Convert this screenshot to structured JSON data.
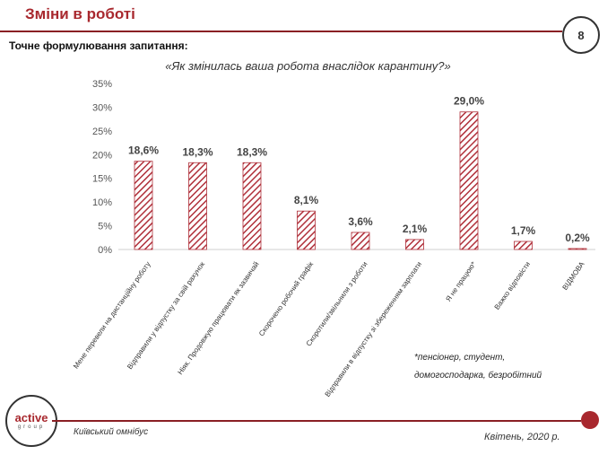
{
  "header": {
    "title": "Зміни в роботі",
    "page_number": "8"
  },
  "question_label": "Точне формулювання  запитання:",
  "question_text": "«Як змінилась ваша робота внаслідок карантину?»",
  "chart_data": {
    "type": "bar",
    "categories": [
      "Мене перевели на дистанційну роботу",
      "Відправили у відпустку за свій рахунок",
      "Ніяк. Продовжую працювати як зазвичай",
      "Скорочено робочий графік",
      "Скоротили/звільнили з роботи",
      "Відправили в відпустку зі збереженням зарплати",
      "Я не працюю*",
      "Важко відповісти",
      "ВІДМОВА"
    ],
    "values": [
      18.6,
      18.3,
      18.3,
      8.1,
      3.6,
      2.1,
      29.0,
      1.7,
      0.2
    ],
    "value_labels": [
      "18,6%",
      "18,3%",
      "18,3%",
      "8,1%",
      "3,6%",
      "2,1%",
      "29,0%",
      "1,7%",
      "0,2%"
    ],
    "y_ticks": [
      "0%",
      "5%",
      "10%",
      "15%",
      "20%",
      "25%",
      "30%",
      "35%"
    ],
    "ylim": [
      0,
      35
    ],
    "grid": false,
    "bar_color": "#b0303a"
  },
  "footnote": {
    "line1": "*пенсіонер, студент,",
    "line2": "домогосподарка, безробітний"
  },
  "footer": {
    "logo_word": "active",
    "logo_sub": "group",
    "left_text": "Київський омнібус",
    "right_text": "Квітень, 2020 р."
  }
}
